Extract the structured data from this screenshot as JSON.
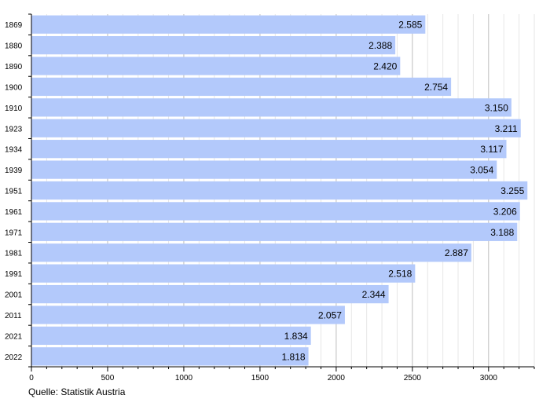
{
  "chart_data": {
    "type": "bar",
    "orientation": "horizontal",
    "categories": [
      "1869",
      "1880",
      "1890",
      "1900",
      "1910",
      "1923",
      "1934",
      "1939",
      "1951",
      "1961",
      "1971",
      "1981",
      "1991",
      "2001",
      "2011",
      "2021",
      "2022"
    ],
    "values": [
      2585,
      2388,
      2420,
      2754,
      3150,
      3211,
      3117,
      3054,
      3255,
      3206,
      3188,
      2887,
      2518,
      2344,
      2057,
      1834,
      1818
    ],
    "value_labels": [
      "2.585",
      "2.388",
      "2.420",
      "2.754",
      "3.150",
      "3.211",
      "3.117",
      "3.054",
      "3.255",
      "3.206",
      "3.188",
      "2.887",
      "2.518",
      "2.344",
      "2.057",
      "1.834",
      "1.818"
    ],
    "x_ticks": [
      0,
      500,
      1000,
      1500,
      2000,
      2500,
      3000
    ],
    "x_tick_labels": [
      "0",
      "500",
      "1000",
      "1500",
      "2000",
      "2500",
      "3000"
    ],
    "xlim": [
      0,
      3300
    ],
    "grid": true,
    "bar_color": "#b3c9fb",
    "title": "",
    "xlabel": "",
    "ylabel": ""
  },
  "source": "Quelle: Statistik Austria"
}
